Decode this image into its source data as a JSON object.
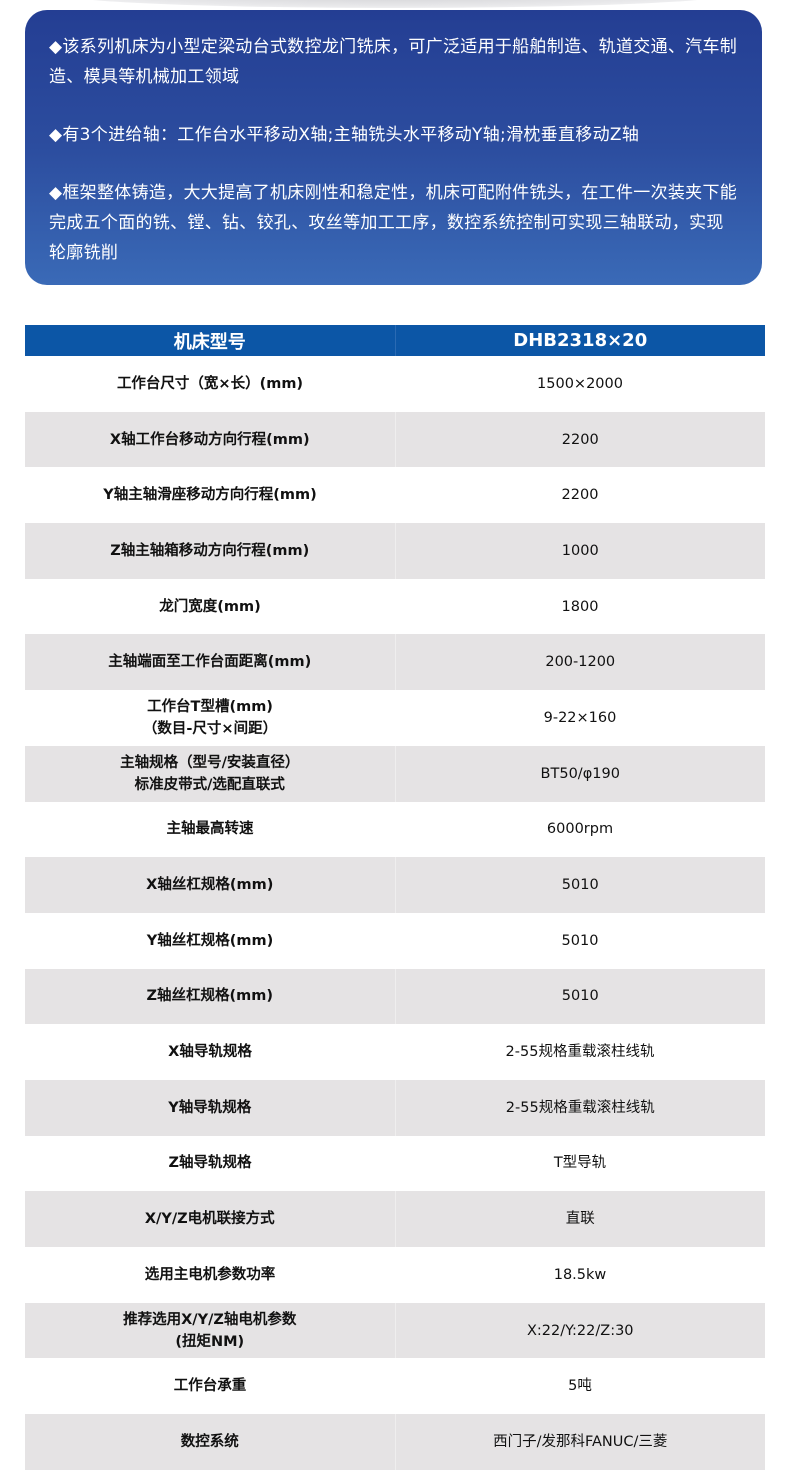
{
  "intro": {
    "paragraphs": [
      "◆该系列机床为小型定梁动台式数控龙门铣床，可广泛适用于船舶制造、轨道交通、汽车制造、模具等机械加工领域",
      "◆有3个进给轴：工作台水平移动X轴;主轴铣头水平移动Y轴;滑枕垂直移动Z轴",
      "◆框架整体铸造，大大提高了机床刚性和稳定性，机床可配附件铣头，在工件一次装夹下能完成五个面的铣、镗、钻、铰孔、攻丝等加工工序，数控系统控制可实现三轴联动，实现轮廓铣削"
    ]
  },
  "table": {
    "header": [
      "机床型号",
      "DHB2318×20"
    ],
    "rows": [
      {
        "label": "工作台尺寸（宽×长）(mm)",
        "value": "1500×2000"
      },
      {
        "label": "X轴工作台移动方向行程(mm)",
        "value": "2200"
      },
      {
        "label": "Y轴主轴滑座移动方向行程(mm)",
        "value": "2200"
      },
      {
        "label": "Z轴主轴箱移动方向行程(mm)",
        "value": "1000"
      },
      {
        "label": "龙门宽度(mm)",
        "value": "1800"
      },
      {
        "label": "主轴端面至工作台面距离(mm)",
        "value": "200-1200"
      },
      {
        "label": "工作台T型槽(mm)\n（数目-尺寸×间距）",
        "value": "9-22×160"
      },
      {
        "label": "主轴规格（型号/安装直径）\n标准皮带式/选配直联式",
        "value": "BT50/φ190"
      },
      {
        "label": "主轴最高转速",
        "value": "6000rpm"
      },
      {
        "label": "X轴丝杠规格(mm)",
        "value": "5010"
      },
      {
        "label": "Y轴丝杠规格(mm)",
        "value": "5010"
      },
      {
        "label": "Z轴丝杠规格(mm)",
        "value": "5010"
      },
      {
        "label": "X轴导轨规格",
        "value": "2-55规格重载滚柱线轨"
      },
      {
        "label": "Y轴导轨规格",
        "value": "2-55规格重载滚柱线轨"
      },
      {
        "label": "Z轴导轨规格",
        "value": "T型导轨"
      },
      {
        "label": "X/Y/Z电机联接方式",
        "value": "直联"
      },
      {
        "label": "选用主电机参数功率",
        "value": "18.5kw"
      },
      {
        "label": "推荐选用X/Y/Z轴电机参数\n(扭矩NM)",
        "value": "X:22/Y:22/Z:30"
      },
      {
        "label": "工作台承重",
        "value": "5吨"
      },
      {
        "label": "数控系统",
        "value": "西门子/发那科FANUC/三菱"
      }
    ]
  },
  "colors": {
    "panel": "#2c4d9f",
    "header": "#0c56a6",
    "stripe": "#e5e3e4"
  }
}
